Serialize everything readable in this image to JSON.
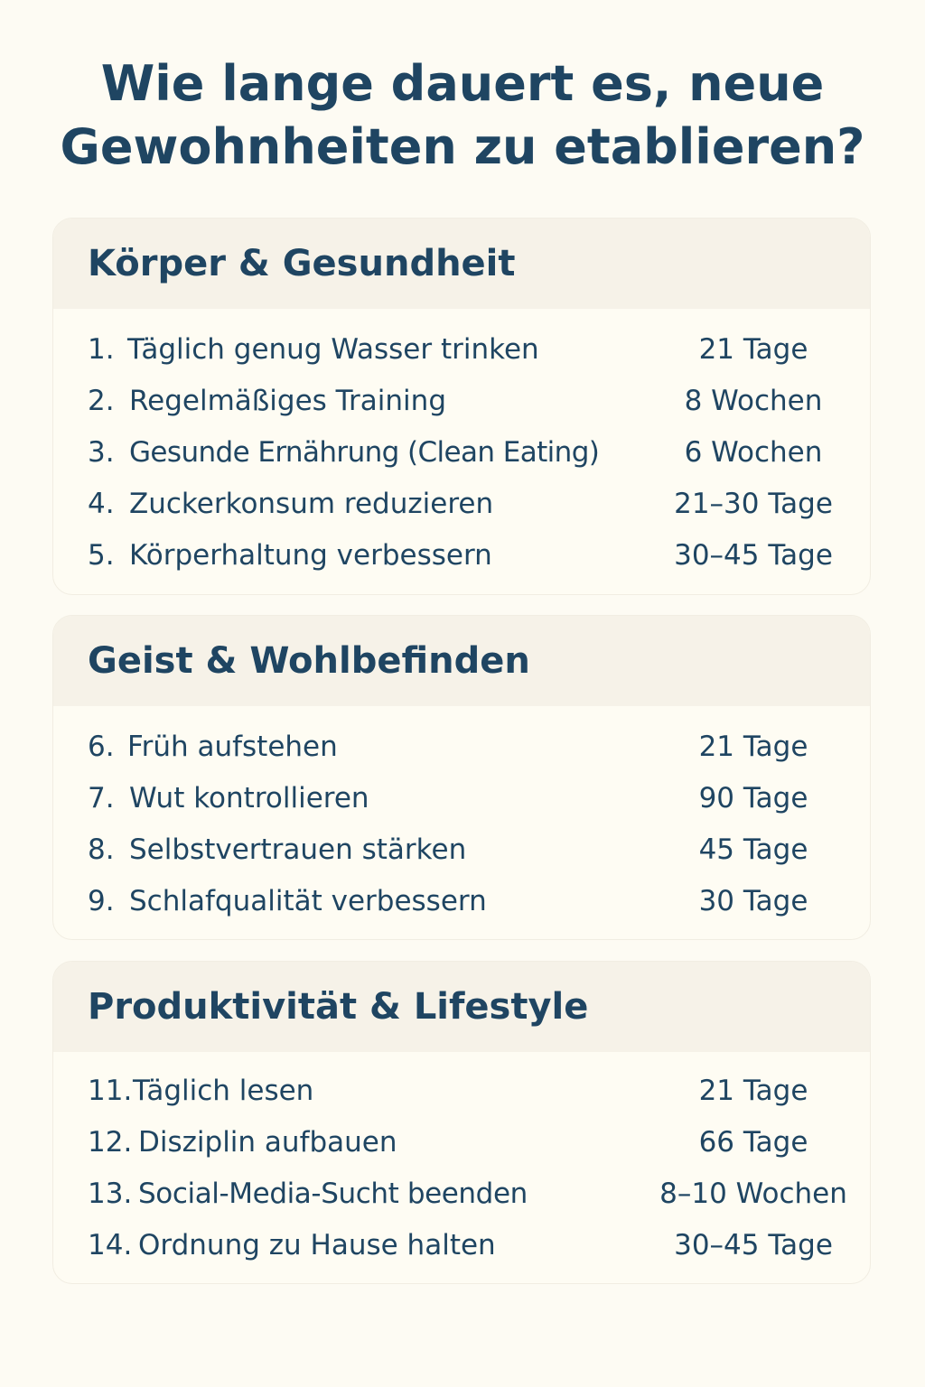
{
  "title_line1": "Wie lange dauert es, neue",
  "title_line2": "Gewohnheiten zu etablieren?",
  "sections": [
    {
      "title": "Körper & Gesundheit",
      "items": [
        {
          "num": "1.",
          "label": "Täglich genug Wasser trinken",
          "duration": "21 Tage"
        },
        {
          "num": "2.",
          "label": "Regelmäßiges Training",
          "duration": "8 Wochen"
        },
        {
          "num": "3.",
          "label": "Gesunde Ernährung (Clean Eating)",
          "duration": "6 Wochen"
        },
        {
          "num": "4.",
          "label": "Zuckerkonsum reduzieren",
          "duration": "21–30 Tage"
        },
        {
          "num": "5.",
          "label": "Körperhaltung verbessern",
          "duration": "30–45 Tage"
        }
      ]
    },
    {
      "title": "Geist & Wohlbefinden",
      "items": [
        {
          "num": "6.",
          "label": "Früh aufstehen",
          "duration": "21 Tage"
        },
        {
          "num": "7.",
          "label": "Wut kontrollieren",
          "duration": "90 Tage"
        },
        {
          "num": "8.",
          "label": "Selbstvertrauen stärken",
          "duration": "45 Tage"
        },
        {
          "num": "9.",
          "label": "Schlafqualität verbessern",
          "duration": "30 Tage"
        }
      ]
    },
    {
      "title": "Produktivität & Lifestyle",
      "items": [
        {
          "num": "11.",
          "label": "Täglich lesen",
          "duration": "21 Tage"
        },
        {
          "num": "12.",
          "label": "Disziplin aufbauen",
          "duration": "66 Tage"
        },
        {
          "num": "13.",
          "label": "Social-Media-Sucht beenden",
          "duration": "8–10 Wochen"
        },
        {
          "num": "14.",
          "label": "Ordnung zu Hause halten",
          "duration": "30–45 Tage"
        }
      ]
    }
  ]
}
